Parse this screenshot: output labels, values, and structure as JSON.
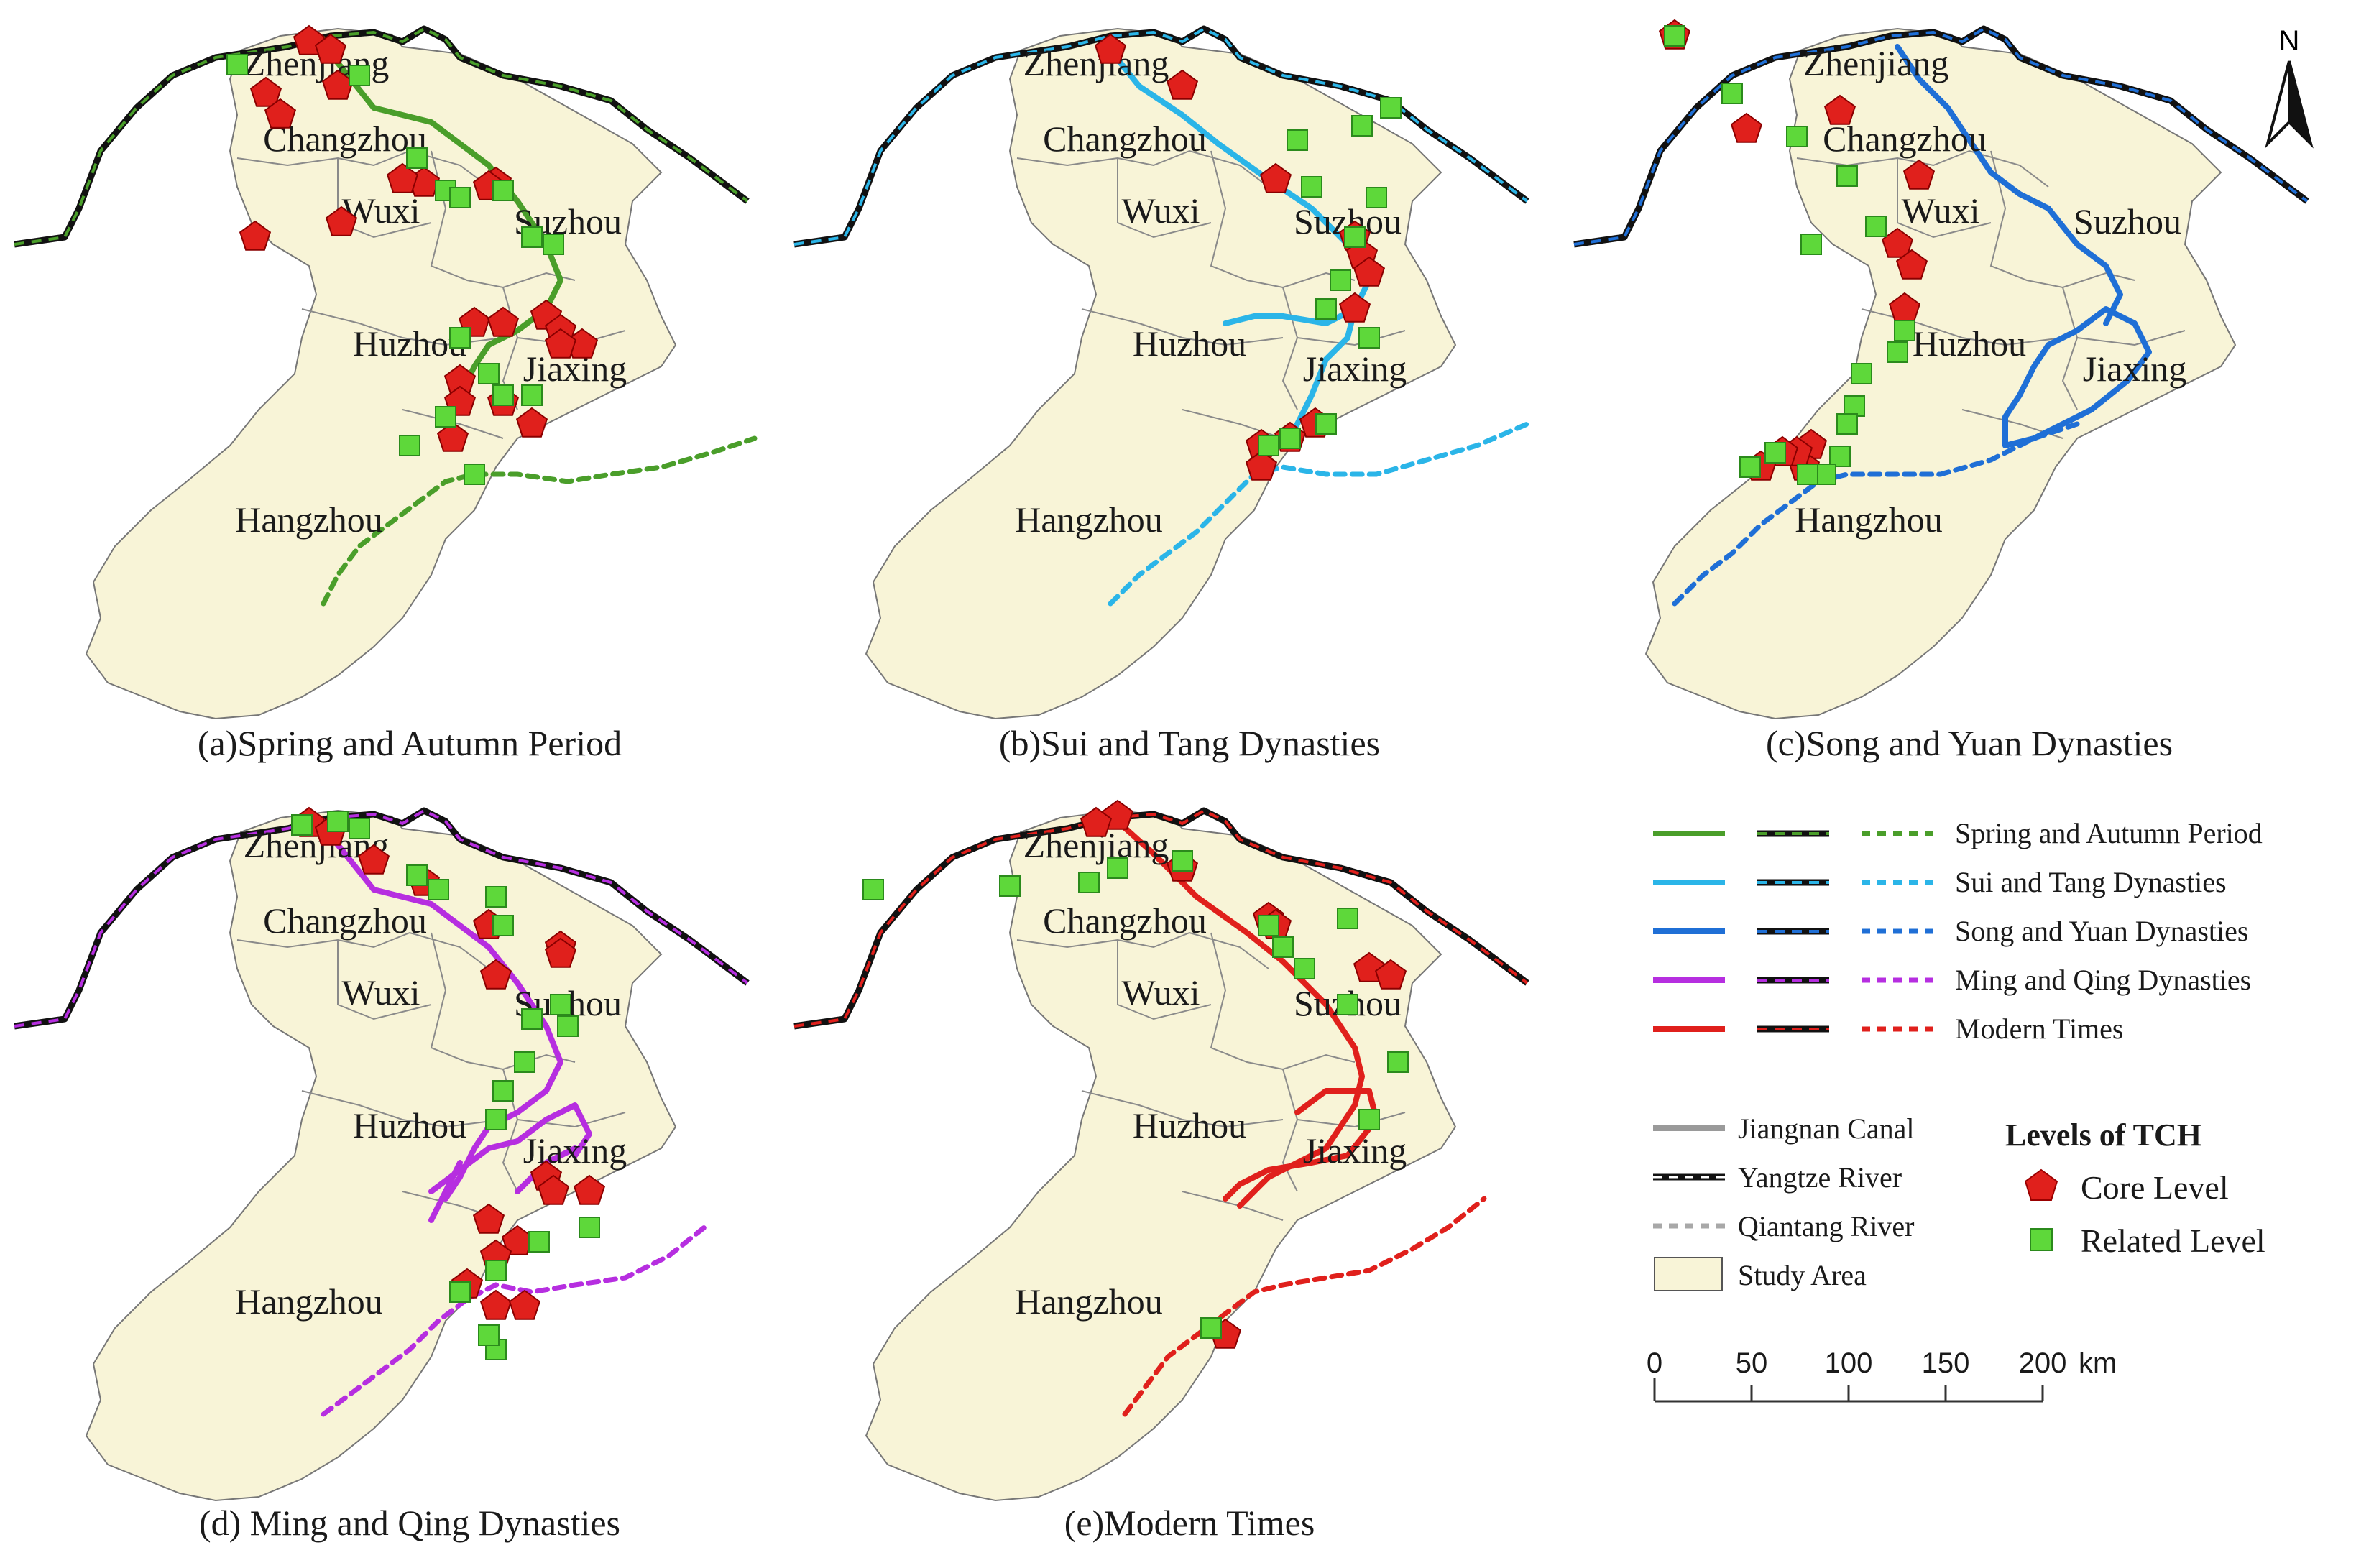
{
  "panels": [
    {
      "id": "a",
      "caption": "(a)Spring and Autumn Period",
      "color": "#4a9e2a"
    },
    {
      "id": "b",
      "caption": "(b)Sui and Tang Dynasties",
      "color": "#2bb5e8"
    },
    {
      "id": "c",
      "caption": "(c)Song and Yuan Dynasties",
      "color": "#1f6fd6"
    },
    {
      "id": "d",
      "caption": "(d) Ming and Qing Dynasties",
      "color": "#b62ee0"
    },
    {
      "id": "e",
      "caption": "(e)Modern Times",
      "color": "#e0201c"
    }
  ],
  "cities": [
    "Zhenjiang",
    "Changzhou",
    "Wuxi",
    "Suzhou",
    "Huzhou",
    "Jiaxing",
    "Hangzhou"
  ],
  "north_label": "N",
  "legend": {
    "periods": [
      {
        "label": "Spring and Autumn Period",
        "color": "#4a9e2a"
      },
      {
        "label": "Sui and Tang Dynasties",
        "color": "#2bb5e8"
      },
      {
        "label": "Song and Yuan Dynasties",
        "color": "#1f6fd6"
      },
      {
        "label": "Ming and Qing Dynasties",
        "color": "#b62ee0"
      },
      {
        "label": "Modern Times",
        "color": "#e0201c"
      }
    ],
    "base": {
      "canal": "Jiangnan Canal",
      "yangtze": "Yangtze River",
      "qiantang": "Qiantang River",
      "study": "Study Area"
    },
    "levels_title": "Levels of TCH",
    "core": "Core Level",
    "related": "Related Level"
  },
  "scale": {
    "ticks": [
      "0",
      "50",
      "100",
      "150",
      "200"
    ],
    "unit": "km"
  },
  "colors": {
    "study_area": "#f8f4d7",
    "core": "#e0201c",
    "related": "#5ed83a",
    "boundary": "#8a8a8a"
  }
}
